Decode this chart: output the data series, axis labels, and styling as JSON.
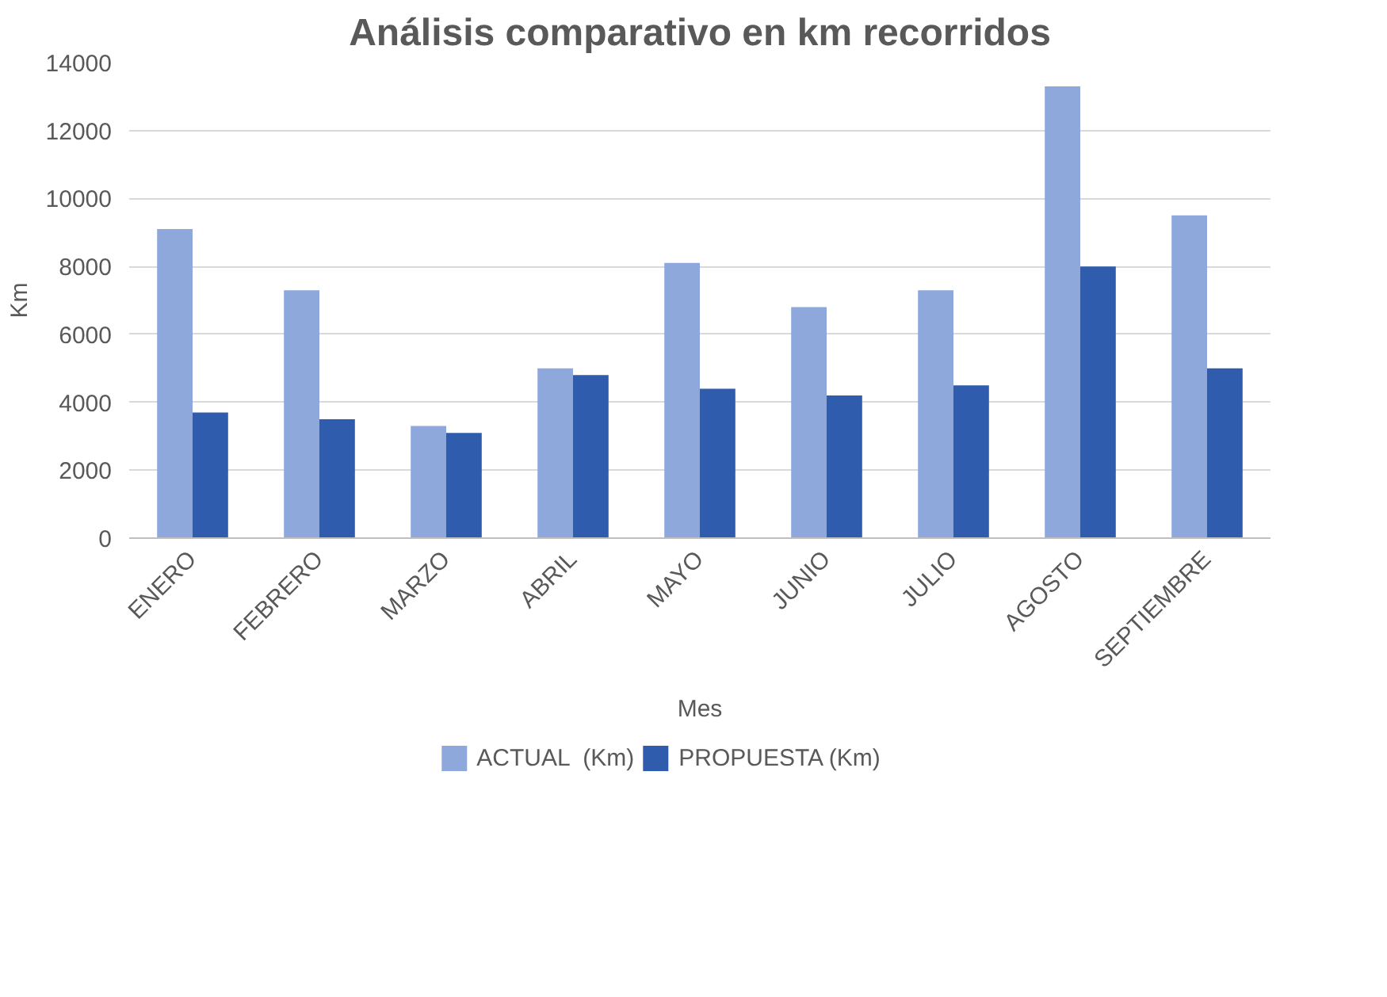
{
  "chart_data": {
    "type": "bar",
    "title": "Análisis comparativo en km recorridos",
    "xlabel": "Mes",
    "ylabel": "Km",
    "categories": [
      "ENERO",
      "FEBRERO",
      "MARZO",
      "ABRIL",
      "MAYO",
      "JUNIO",
      "JULIO",
      "AGOSTO",
      "SEPTIEMBRE"
    ],
    "series": [
      {
        "name": "ACTUAL  (Km)",
        "color": "#8fa8dc",
        "values": [
          9100,
          7300,
          3300,
          5000,
          8100,
          6800,
          7300,
          13300,
          9500
        ]
      },
      {
        "name": "PROPUESTA (Km)",
        "color": "#2f5cad",
        "values": [
          3700,
          3500,
          3100,
          4800,
          4400,
          4200,
          4500,
          8000,
          5000
        ]
      }
    ],
    "ylim": [
      0,
      14000
    ],
    "yticks": [
      0,
      2000,
      4000,
      6000,
      8000,
      10000,
      12000,
      14000
    ],
    "grid": "y",
    "legend": "bottom"
  }
}
